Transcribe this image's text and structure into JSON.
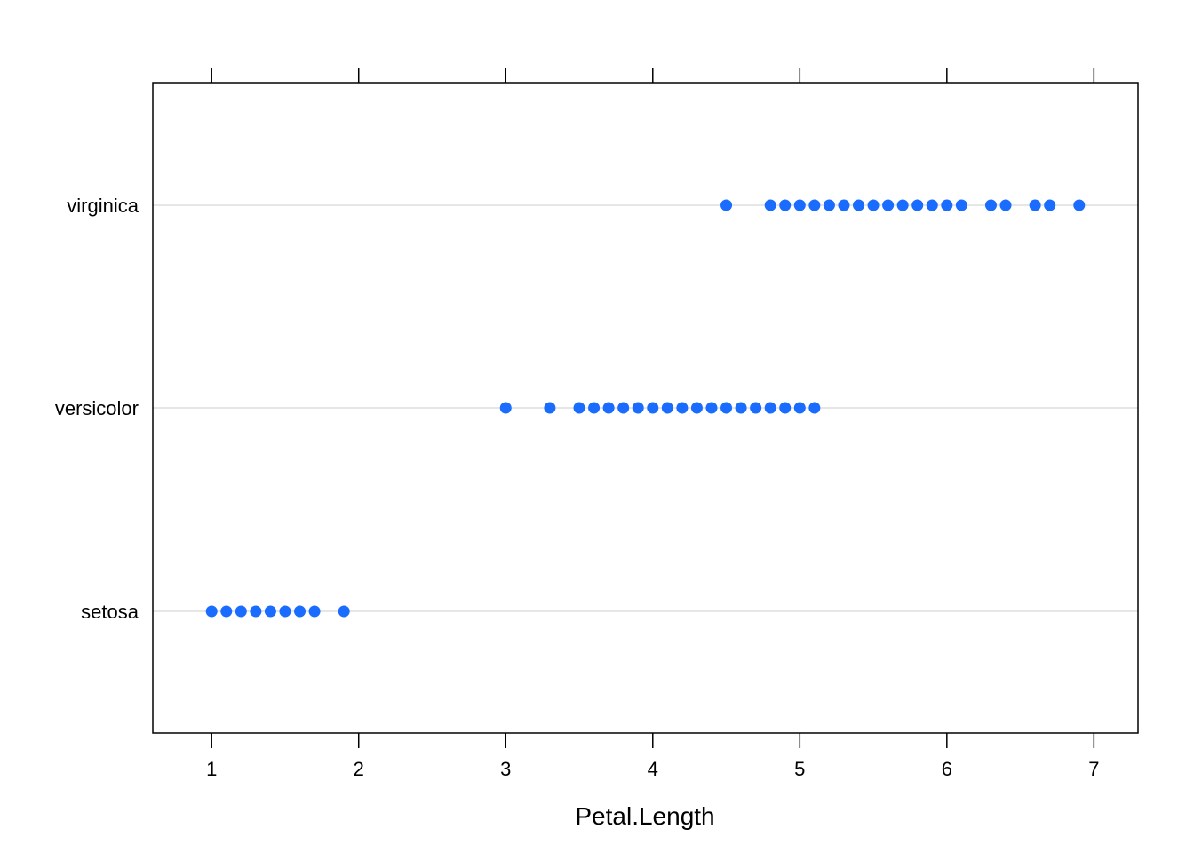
{
  "chart_data": {
    "type": "scatter",
    "title": "",
    "xlabel": "Petal.Length",
    "ylabel": "",
    "xlim": [
      0.6,
      7.3
    ],
    "x_ticks": [
      1,
      2,
      3,
      4,
      5,
      6,
      7
    ],
    "categories": [
      "setosa",
      "versicolor",
      "virginica"
    ],
    "grid": "horizontal",
    "point_color": "#1a6cff",
    "series": [
      {
        "category": "setosa",
        "x": [
          1.0,
          1.1,
          1.2,
          1.3,
          1.4,
          1.5,
          1.6,
          1.7,
          1.9
        ]
      },
      {
        "category": "versicolor",
        "x": [
          3.0,
          3.3,
          3.5,
          3.6,
          3.7,
          3.8,
          3.9,
          4.0,
          4.1,
          4.2,
          4.3,
          4.4,
          4.5,
          4.6,
          4.7,
          4.8,
          4.9,
          5.0,
          5.1
        ]
      },
      {
        "category": "virginica",
        "x": [
          4.5,
          4.8,
          4.9,
          5.0,
          5.1,
          5.2,
          5.3,
          5.4,
          5.5,
          5.6,
          5.7,
          5.8,
          5.9,
          6.0,
          6.1,
          6.3,
          6.4,
          6.6,
          6.7,
          6.9
        ]
      }
    ]
  }
}
